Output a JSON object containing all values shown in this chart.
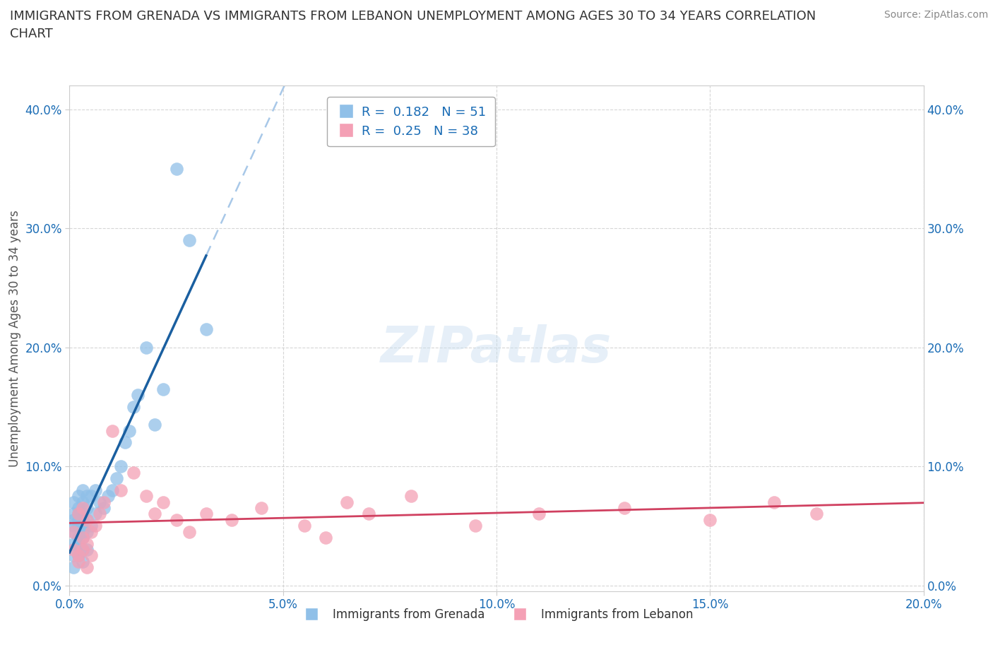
{
  "title": "IMMIGRANTS FROM GRENADA VS IMMIGRANTS FROM LEBANON UNEMPLOYMENT AMONG AGES 30 TO 34 YEARS CORRELATION\nCHART",
  "ylabel": "Unemployment Among Ages 30 to 34 years",
  "source": "Source: ZipAtlas.com",
  "watermark": "ZIPatlas",
  "xlim": [
    0.0,
    0.2
  ],
  "ylim": [
    -0.005,
    0.42
  ],
  "xticks": [
    0.0,
    0.05,
    0.1,
    0.15,
    0.2
  ],
  "yticks": [
    0.0,
    0.1,
    0.2,
    0.3,
    0.4
  ],
  "grenada_color": "#90C0E8",
  "lebanon_color": "#F4A0B5",
  "grenada_line_color": "#1A5FA0",
  "lebanon_line_color": "#D04060",
  "dashed_line_color": "#A8C8E8",
  "grenada_R": 0.182,
  "grenada_N": 51,
  "lebanon_R": 0.25,
  "lebanon_N": 38,
  "grenada_x": [
    0.001,
    0.001,
    0.001,
    0.001,
    0.001,
    0.002,
    0.002,
    0.002,
    0.002,
    0.002,
    0.002,
    0.003,
    0.003,
    0.003,
    0.003,
    0.003,
    0.003,
    0.003,
    0.004,
    0.004,
    0.004,
    0.004,
    0.005,
    0.005,
    0.006,
    0.006,
    0.007,
    0.008,
    0.009,
    0.01,
    0.011,
    0.012,
    0.013,
    0.014,
    0.015,
    0.016,
    0.018,
    0.02,
    0.022,
    0.025,
    0.028,
    0.032,
    0.002,
    0.001,
    0.001,
    0.002,
    0.003,
    0.004,
    0.001,
    0.002,
    0.003
  ],
  "grenada_y": [
    0.035,
    0.05,
    0.055,
    0.06,
    0.07,
    0.04,
    0.05,
    0.055,
    0.06,
    0.065,
    0.075,
    0.03,
    0.04,
    0.05,
    0.055,
    0.06,
    0.07,
    0.08,
    0.045,
    0.055,
    0.065,
    0.075,
    0.05,
    0.075,
    0.06,
    0.08,
    0.07,
    0.065,
    0.075,
    0.08,
    0.09,
    0.1,
    0.12,
    0.13,
    0.15,
    0.16,
    0.2,
    0.135,
    0.165,
    0.35,
    0.29,
    0.215,
    0.035,
    0.025,
    0.015,
    0.025,
    0.02,
    0.03,
    0.045,
    0.035,
    0.045
  ],
  "lebanon_x": [
    0.001,
    0.001,
    0.002,
    0.002,
    0.003,
    0.003,
    0.004,
    0.004,
    0.005,
    0.006,
    0.007,
    0.008,
    0.01,
    0.012,
    0.015,
    0.018,
    0.02,
    0.022,
    0.025,
    0.028,
    0.032,
    0.038,
    0.045,
    0.055,
    0.06,
    0.065,
    0.07,
    0.08,
    0.095,
    0.11,
    0.13,
    0.15,
    0.165,
    0.175,
    0.002,
    0.003,
    0.004,
    0.005
  ],
  "lebanon_y": [
    0.03,
    0.045,
    0.025,
    0.06,
    0.04,
    0.065,
    0.035,
    0.055,
    0.045,
    0.05,
    0.06,
    0.07,
    0.13,
    0.08,
    0.095,
    0.075,
    0.06,
    0.07,
    0.055,
    0.045,
    0.06,
    0.055,
    0.065,
    0.05,
    0.04,
    0.07,
    0.06,
    0.075,
    0.05,
    0.06,
    0.065,
    0.055,
    0.07,
    0.06,
    0.02,
    0.03,
    0.015,
    0.025
  ],
  "background_color": "#ffffff",
  "grid_color": "#cccccc"
}
